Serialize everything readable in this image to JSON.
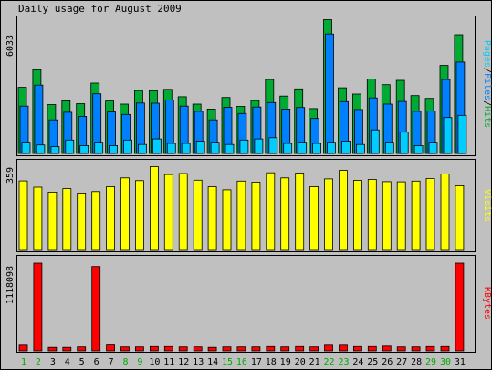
{
  "title": "Daily usage for August 2009",
  "colors": {
    "hits": "#00aa33",
    "files": "#0080ff",
    "pages": "#00ccff",
    "visits": "#ffff00",
    "kbytes": "#ff0000",
    "weekend_label": "#00aa00"
  },
  "chart_data": [
    {
      "type": "bar",
      "panel": "top",
      "ymax_label": "6033",
      "ylim": [
        0,
        6033
      ],
      "legend_parts": [
        "Pages",
        "Files",
        "Hits"
      ],
      "legend_separator": "/",
      "categories": [
        "1",
        "2",
        "3",
        "4",
        "5",
        "6",
        "7",
        "8",
        "9",
        "10",
        "11",
        "12",
        "13",
        "14",
        "15",
        "16",
        "17",
        "18",
        "19",
        "20",
        "21",
        "22",
        "23",
        "24",
        "25",
        "26",
        "27",
        "28",
        "29",
        "30",
        "31"
      ],
      "series": [
        {
          "name": "Hits",
          "values": [
            2950,
            3740,
            2180,
            2350,
            2220,
            3140,
            2340,
            2200,
            2810,
            2800,
            2860,
            2530,
            2200,
            1980,
            2500,
            2100,
            2360,
            3300,
            2560,
            2880,
            2000,
            5970,
            2930,
            2650,
            3320,
            3070,
            3260,
            2580,
            2460,
            3930,
            5300
          ]
        },
        {
          "name": "Files",
          "values": [
            2110,
            3050,
            1500,
            1840,
            1650,
            2660,
            1850,
            1740,
            2250,
            2240,
            2380,
            2110,
            1880,
            1500,
            2060,
            1780,
            2070,
            2270,
            1980,
            2050,
            1560,
            5330,
            2310,
            1960,
            2480,
            2200,
            2320,
            1880,
            1890,
            3300,
            4080
          ]
        },
        {
          "name": "Pages",
          "values": [
            500,
            380,
            300,
            600,
            350,
            500,
            350,
            600,
            400,
            650,
            450,
            450,
            550,
            500,
            400,
            600,
            650,
            700,
            450,
            500,
            450,
            500,
            550,
            400,
            1050,
            500,
            950,
            350,
            500,
            1600,
            1700
          ]
        }
      ],
      "weekend_days": [
        1,
        2,
        8,
        9,
        15,
        16,
        22,
        23,
        29,
        30
      ]
    },
    {
      "type": "bar",
      "panel": "middle",
      "ymax_label": "359",
      "ylim": [
        0,
        359
      ],
      "legend_parts": [
        "Visits"
      ],
      "categories": [
        "1",
        "2",
        "3",
        "4",
        "5",
        "6",
        "7",
        "8",
        "9",
        "10",
        "11",
        "12",
        "13",
        "14",
        "15",
        "16",
        "17",
        "18",
        "19",
        "20",
        "21",
        "22",
        "23",
        "24",
        "25",
        "26",
        "27",
        "28",
        "29",
        "30",
        "31"
      ],
      "series": [
        {
          "name": "Visits",
          "values": [
            284,
            258,
            238,
            252,
            234,
            240,
            260,
            296,
            285,
            342,
            310,
            314,
            287,
            260,
            247,
            283,
            279,
            317,
            296,
            316,
            260,
            292,
            327,
            286,
            290,
            281,
            280,
            283,
            294,
            312,
            264
          ]
        }
      ]
    },
    {
      "type": "bar",
      "panel": "bottom",
      "ymax_label": "1118098",
      "ylim": [
        0,
        1118098
      ],
      "legend_parts": [
        "KBytes"
      ],
      "categories": [
        "1",
        "2",
        "3",
        "4",
        "5",
        "6",
        "7",
        "8",
        "9",
        "10",
        "11",
        "12",
        "13",
        "14",
        "15",
        "16",
        "17",
        "18",
        "19",
        "20",
        "21",
        "22",
        "23",
        "24",
        "25",
        "26",
        "27",
        "28",
        "29",
        "30",
        "31"
      ],
      "series": [
        {
          "name": "KBytes",
          "values": [
            72000,
            1118000,
            44000,
            44000,
            50000,
            1075000,
            74000,
            50000,
            50000,
            55000,
            55000,
            50000,
            50000,
            44000,
            50000,
            50000,
            50000,
            55000,
            50000,
            55000,
            50000,
            72000,
            72000,
            55000,
            55000,
            60000,
            50000,
            50000,
            55000,
            55000,
            1118098
          ]
        }
      ]
    }
  ]
}
